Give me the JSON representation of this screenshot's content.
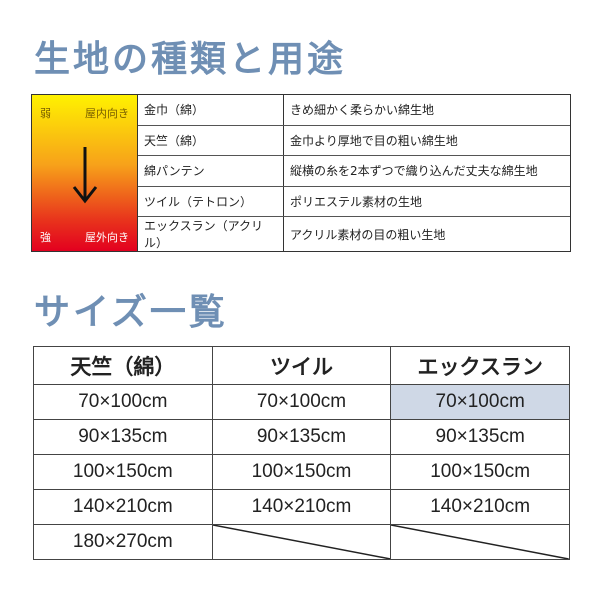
{
  "fabric_section": {
    "title": "生地の種類と用途",
    "scale": {
      "weak": "弱",
      "indoor": "屋内向き",
      "strong": "強",
      "outdoor": "屋外向き"
    },
    "rows": [
      {
        "name": "金巾（綿）",
        "use": "きめ細かく柔らかい綿生地"
      },
      {
        "name": "天竺（綿）",
        "use": "金巾より厚地で目の粗い綿生地"
      },
      {
        "name": "綿パンテン",
        "use": "縦横の糸を2本ずつで織り込んだ丈夫な綿生地"
      },
      {
        "name": "ツイル（テトロン）",
        "use": "ポリエステル素材の生地"
      },
      {
        "name": "エックスラン（アクリル）",
        "use": "アクリル素材の目の粗い生地"
      }
    ]
  },
  "size_section": {
    "title": "サイズ一覧",
    "headers": [
      "天竺（綿）",
      "ツイル",
      "エックスラン"
    ],
    "rows": [
      [
        "70×100cm",
        "70×100cm",
        "70×100cm"
      ],
      [
        "90×135cm",
        "90×135cm",
        "90×135cm"
      ],
      [
        "100×150cm",
        "100×150cm",
        "100×150cm"
      ],
      [
        "140×210cm",
        "140×210cm",
        "140×210cm"
      ],
      [
        "180×270cm",
        "",
        ""
      ]
    ],
    "highlight_color": "#cfd8e6"
  }
}
